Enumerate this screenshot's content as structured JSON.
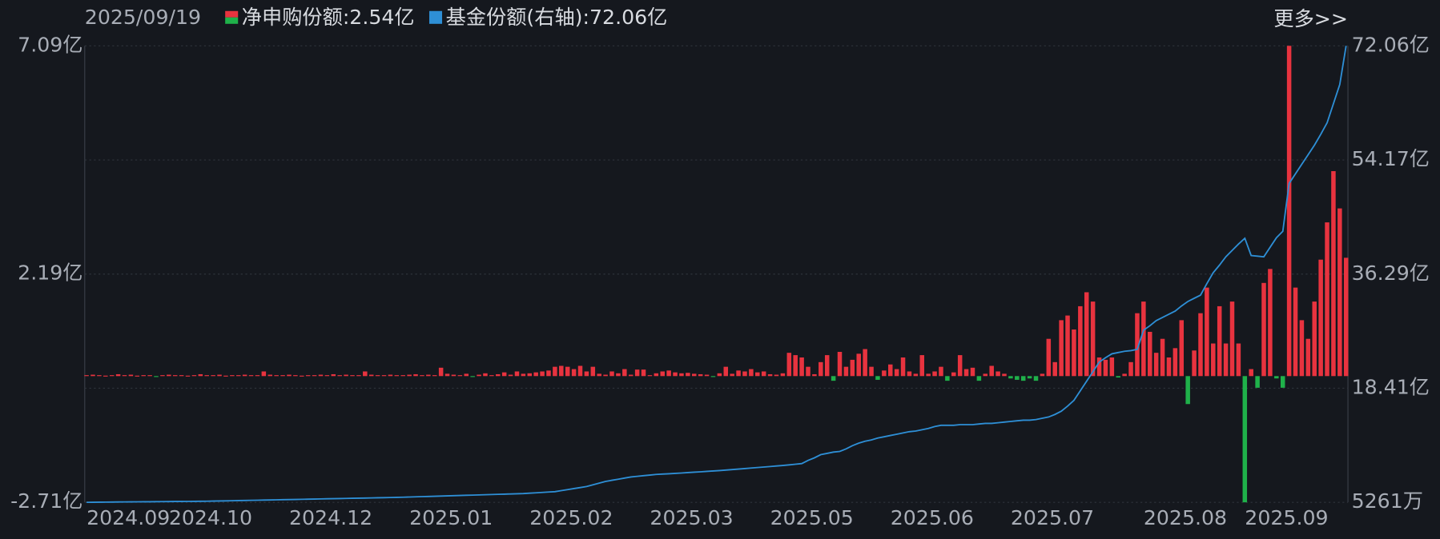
{
  "chart_data": {
    "type": "bar-line",
    "date": "2025/09/19",
    "more": "更多>>",
    "categories": [
      "2024.09",
      null,
      null,
      null,
      null,
      null,
      null,
      null,
      null,
      null,
      null,
      null,
      null,
      "2024.10",
      null,
      null,
      null,
      null,
      null,
      null,
      null,
      null,
      null,
      null,
      null,
      null,
      null,
      null,
      null,
      null,
      null,
      null,
      "2024.12",
      null,
      null,
      null,
      null,
      null,
      null,
      null,
      null,
      null,
      null,
      null,
      null,
      null,
      null,
      null,
      null,
      null,
      null,
      "2025.01",
      null,
      null,
      null,
      null,
      null,
      null,
      null,
      null,
      null,
      null,
      null,
      null,
      null,
      null,
      null,
      null,
      null,
      null,
      "2025.02",
      null,
      null,
      null,
      null,
      null,
      null,
      null,
      null,
      null,
      null,
      null,
      null,
      null,
      null,
      null,
      null,
      null,
      null,
      "2025.03",
      null,
      null,
      null,
      null,
      null,
      null,
      null,
      null,
      null,
      null,
      null,
      null,
      null,
      null,
      null,
      null,
      null,
      null,
      "2025.05",
      null,
      null,
      null,
      null,
      null,
      null,
      null,
      null,
      null,
      null,
      null,
      null,
      null,
      null,
      null,
      null,
      null,
      null,
      "2025.06",
      null,
      null,
      null,
      null,
      null,
      null,
      null,
      null,
      null,
      null,
      null,
      null,
      null,
      null,
      null,
      null,
      null,
      null,
      "2025.07",
      null,
      null,
      null,
      null,
      null,
      null,
      null,
      null,
      null,
      null,
      null,
      null,
      null,
      null,
      null,
      null,
      null,
      null,
      null,
      null,
      "2025.08",
      null,
      null,
      null,
      null,
      null,
      null,
      null,
      null,
      null,
      null,
      null,
      null,
      null,
      null,
      null,
      "2025.09",
      null,
      null,
      null,
      null,
      null,
      null,
      null,
      null,
      null,
      null,
      null,
      null,
      null,
      null,
      null,
      null
    ],
    "ylim": [
      -2.71,
      7.09
    ],
    "yticks": [
      {
        "value": 7.09,
        "label": "7.09亿"
      },
      {
        "value": 2.19,
        "label": "2.19亿"
      },
      {
        "value": -2.71,
        "label": "-2.71亿"
      }
    ],
    "y2lim": [
      0.5261,
      72.06
    ],
    "y2ticks": [
      {
        "value": 72.06,
        "label": "72.06亿"
      },
      {
        "value": 54.17,
        "label": "54.17亿"
      },
      {
        "value": 36.29,
        "label": "36.29亿"
      },
      {
        "value": 18.41,
        "label": "18.41亿"
      },
      {
        "value": 0.5261,
        "label": "5261万"
      }
    ],
    "grid": true,
    "series": [
      {
        "name": "净申购份额",
        "latest_label": ":2.54亿",
        "type": "bar",
        "color": "#e8333f",
        "down_color": "#1fb14a",
        "values": [
          0.02,
          0.03,
          0.02,
          0.01,
          0.02,
          0.04,
          0.02,
          0.03,
          0.01,
          0.02,
          0.02,
          -0.01,
          0.02,
          0.03,
          0.02,
          0.02,
          0.01,
          0.02,
          0.04,
          0.02,
          0.02,
          0.03,
          0.01,
          0.02,
          0.02,
          0.03,
          0.02,
          0.02,
          0.1,
          0.03,
          0.02,
          0.02,
          0.03,
          0.02,
          0.01,
          0.02,
          0.02,
          0.03,
          0.02,
          0.04,
          0.02,
          0.03,
          0.02,
          0.02,
          0.1,
          0.03,
          0.02,
          0.02,
          0.03,
          0.02,
          0.02,
          0.03,
          0.04,
          0.02,
          0.03,
          0.02,
          0.18,
          0.05,
          0.03,
          0.02,
          0.05,
          -0.02,
          0.03,
          0.06,
          0.02,
          0.04,
          0.08,
          0.03,
          0.1,
          0.05,
          0.06,
          0.08,
          0.1,
          0.12,
          0.2,
          0.22,
          0.2,
          0.15,
          0.22,
          0.1,
          0.2,
          0.05,
          0.03,
          0.1,
          0.06,
          0.15,
          0.03,
          0.14,
          0.14,
          0.02,
          0.06,
          0.1,
          0.12,
          0.08,
          0.06,
          0.07,
          0.05,
          0.04,
          0.03,
          -0.02,
          0.06,
          0.2,
          0.05,
          0.12,
          0.1,
          0.15,
          0.08,
          0.1,
          0.04,
          0.03,
          0.06,
          0.5,
          0.45,
          0.4,
          0.2,
          0.04,
          0.3,
          0.45,
          -0.1,
          0.52,
          0.2,
          0.35,
          0.48,
          0.58,
          0.2,
          -0.08,
          0.12,
          0.25,
          0.15,
          0.4,
          0.1,
          0.05,
          0.45,
          0.05,
          0.1,
          0.2,
          -0.1,
          0.08,
          0.45,
          0.15,
          0.18,
          -0.1,
          0.05,
          0.22,
          0.1,
          0.05,
          -0.05,
          -0.08,
          -0.1,
          -0.05,
          -0.1,
          0.05,
          0.8,
          0.3,
          1.2,
          1.3,
          1.0,
          1.5,
          1.8,
          1.6,
          0.4,
          0.35,
          0.4,
          -0.03,
          0.05,
          0.3,
          1.35,
          1.6,
          0.95,
          0.5,
          0.8,
          0.4,
          0.6,
          1.2,
          -0.6,
          0.55,
          1.35,
          1.9,
          0.7,
          1.5,
          0.7,
          1.6,
          0.7,
          -2.71,
          0.15,
          -0.25,
          2.0,
          2.3,
          -0.05,
          -0.25,
          7.09,
          1.9,
          1.2,
          0.8,
          1.6,
          2.5,
          3.3,
          4.4,
          3.6,
          2.54
        ]
      },
      {
        "name": "基金份额(右轴)",
        "latest_label": ":72.06亿",
        "type": "line",
        "axis": "y2",
        "color": "#2e8fd6",
        "values": [
          0.53,
          0.54,
          0.55,
          0.56,
          0.57,
          0.58,
          0.59,
          0.6,
          0.61,
          0.62,
          0.62,
          0.63,
          0.64,
          0.65,
          0.66,
          0.66,
          0.67,
          0.68,
          0.69,
          0.7,
          0.72,
          0.74,
          0.76,
          0.78,
          0.8,
          0.82,
          0.84,
          0.86,
          0.88,
          0.9,
          0.92,
          0.94,
          0.96,
          0.98,
          1.0,
          1.02,
          1.04,
          1.06,
          1.08,
          1.1,
          1.12,
          1.14,
          1.16,
          1.18,
          1.2,
          1.22,
          1.24,
          1.26,
          1.28,
          1.3,
          1.33,
          1.36,
          1.39,
          1.42,
          1.45,
          1.48,
          1.51,
          1.54,
          1.57,
          1.6,
          1.63,
          1.66,
          1.69,
          1.72,
          1.75,
          1.78,
          1.81,
          1.84,
          1.87,
          1.9,
          1.96,
          2.02,
          2.08,
          2.14,
          2.2,
          2.36,
          2.52,
          2.68,
          2.84,
          3.0,
          3.27,
          3.54,
          3.8,
          3.98,
          4.15,
          4.33,
          4.5,
          4.6,
          4.7,
          4.8,
          4.9,
          4.95,
          5.0,
          5.06,
          5.12,
          5.19,
          5.25,
          5.31,
          5.38,
          5.44,
          5.5,
          5.58,
          5.66,
          5.74,
          5.82,
          5.9,
          5.98,
          6.06,
          6.14,
          6.22,
          6.3,
          6.4,
          6.5,
          6.6,
          7.1,
          7.5,
          8.0,
          8.2,
          8.4,
          8.5,
          8.9,
          9.4,
          9.8,
          10.1,
          10.3,
          10.6,
          10.8,
          11.0,
          11.2,
          11.4,
          11.6,
          11.7,
          11.9,
          12.1,
          12.4,
          12.6,
          12.6,
          12.6,
          12.7,
          12.7,
          12.7,
          12.8,
          12.9,
          12.9,
          13.0,
          13.1,
          13.2,
          13.3,
          13.4,
          13.4,
          13.5,
          13.7,
          13.9,
          14.3,
          14.8,
          15.6,
          16.5,
          18.0,
          19.5,
          21.0,
          22.5,
          23.2,
          23.8,
          24.0,
          24.2,
          24.3,
          24.5,
          27.5,
          28.2,
          29.0,
          29.5,
          30.0,
          30.5,
          31.3,
          32.0,
          32.5,
          33.0,
          34.8,
          36.5,
          37.7,
          39.0,
          40.0,
          41.0,
          41.9,
          39.2,
          39.1,
          39.0,
          40.5,
          42.0,
          43.0,
          50.5,
          52.0,
          53.5,
          55.0,
          56.5,
          58.2,
          60.0,
          63.0,
          66.0,
          72.06
        ]
      }
    ]
  }
}
